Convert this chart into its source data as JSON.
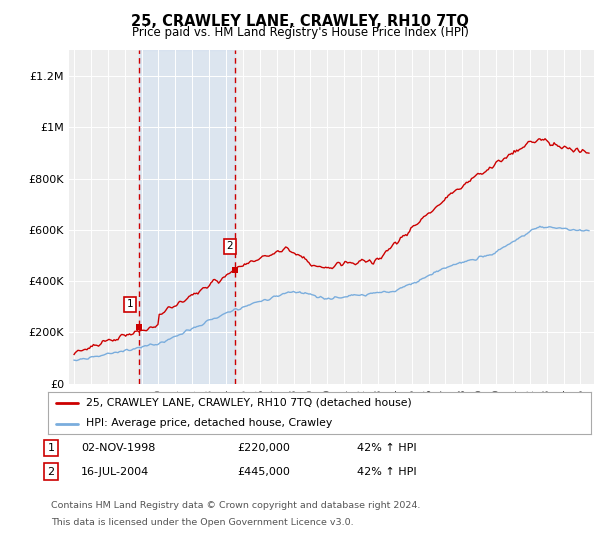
{
  "title": "25, CRAWLEY LANE, CRAWLEY, RH10 7TQ",
  "subtitle": "Price paid vs. HM Land Registry's House Price Index (HPI)",
  "ylim": [
    0,
    1300000
  ],
  "xlim_start": 1994.7,
  "xlim_end": 2025.8,
  "bg_color": "#ffffff",
  "plot_bg_color": "#eeeeee",
  "grid_color": "#ffffff",
  "red_line_color": "#cc0000",
  "blue_line_color": "#7aaddd",
  "sale1_year": 1998.83,
  "sale1_price": 220000,
  "sale2_year": 2004.54,
  "sale2_price": 445000,
  "legend_label_red": "25, CRAWLEY LANE, CRAWLEY, RH10 7TQ (detached house)",
  "legend_label_blue": "HPI: Average price, detached house, Crawley",
  "table_row1_num": "1",
  "table_row1_date": "02-NOV-1998",
  "table_row1_price": "£220,000",
  "table_row1_hpi": "42% ↑ HPI",
  "table_row2_num": "2",
  "table_row2_date": "16-JUL-2004",
  "table_row2_price": "£445,000",
  "table_row2_hpi": "42% ↑ HPI",
  "footer_line1": "Contains HM Land Registry data © Crown copyright and database right 2024.",
  "footer_line2": "This data is licensed under the Open Government Licence v3.0.",
  "yticks": [
    0,
    200000,
    400000,
    600000,
    800000,
    1000000,
    1200000
  ],
  "ytick_labels": [
    "£0",
    "£200K",
    "£400K",
    "£600K",
    "£800K",
    "£1M",
    "£1.2M"
  ],
  "xticks": [
    1995,
    1996,
    1997,
    1998,
    1999,
    2000,
    2001,
    2002,
    2003,
    2004,
    2005,
    2006,
    2007,
    2008,
    2009,
    2010,
    2011,
    2012,
    2013,
    2014,
    2015,
    2016,
    2017,
    2018,
    2019,
    2020,
    2021,
    2022,
    2023,
    2024,
    2025
  ],
  "span_color": "#ccddf0",
  "span_alpha": 0.5
}
